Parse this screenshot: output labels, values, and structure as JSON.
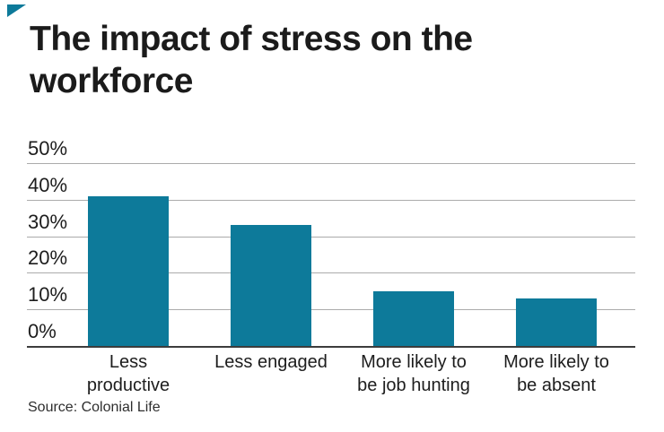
{
  "page": {
    "title_lines": [
      "The impact of stress on the",
      "workforce"
    ]
  },
  "chart_data": {
    "type": "bar",
    "title": "The impact of stress on the workforce",
    "categories": [
      "Less productive",
      "Less engaged",
      "More likely to be job hunting",
      "More likely to be absent"
    ],
    "category_label_lines": [
      [
        "Less",
        "productive"
      ],
      [
        "Less engaged"
      ],
      [
        "More likely to",
        "be job hunting"
      ],
      [
        "More likely to",
        "be absent"
      ]
    ],
    "values": [
      41,
      33,
      15,
      13
    ],
    "value_unit": "%",
    "ylim": [
      0,
      50
    ],
    "yticks": [
      0,
      10,
      20,
      30,
      40,
      50
    ],
    "ytick_labels": [
      "0%",
      "10%",
      "20%",
      "30%",
      "40%",
      "50%"
    ],
    "grid": "on",
    "legend": "none",
    "bar_color": "#0d7a9a",
    "source": "Source: Colonial Life"
  },
  "colors": {
    "accent_teal": "#0d7a9a",
    "title_text": "#1b1b1b",
    "axis_text": "#1d1d1d",
    "gridline": "#ababab",
    "axis_line": "#3d3d3d",
    "source_text": "#2e2e2e",
    "background": "#ffffff"
  }
}
